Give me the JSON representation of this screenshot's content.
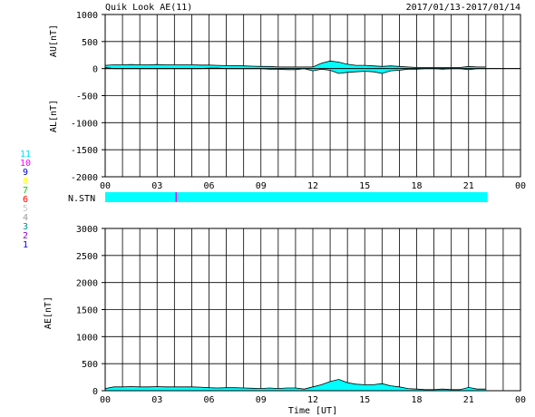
{
  "header": {
    "title": "Quik Look AE(11)",
    "date_range": "2017/01/13-2017/01/14"
  },
  "station_legend": [
    {
      "num": "11",
      "color": "#00e0ff"
    },
    {
      "num": "10",
      "color": "#ff00ff"
    },
    {
      "num": "9",
      "color": "#0000cc"
    },
    {
      "num": "8",
      "color": "#ffff00"
    },
    {
      "num": "7",
      "color": "#00cc00"
    },
    {
      "num": "6",
      "color": "#ff0000"
    },
    {
      "num": "5",
      "color": "#c8c8c8"
    },
    {
      "num": "4",
      "color": "#999999"
    },
    {
      "num": "3",
      "color": "#009090"
    },
    {
      "num": "2",
      "color": "#9900cc"
    },
    {
      "num": "1",
      "color": "#0000ff"
    }
  ],
  "nstn": {
    "label": "N.STN",
    "bar_color": "#00ffff",
    "start_hour": 0,
    "end_hour": 22.1,
    "marker_hour": 4.1,
    "marker_color": "#ff00ff"
  },
  "colors": {
    "fill": "#00ffff",
    "line": "#000000",
    "grid": "#000000"
  },
  "chart_data": [
    {
      "type": "area",
      "name": "AU/AL",
      "ylabel_upper": "AU[nT]",
      "ylabel_lower": "AL[nT]",
      "ylim": [
        -2000,
        1000
      ],
      "yticks": [
        1000,
        500,
        0,
        -500,
        -1000,
        -1500,
        -2000
      ],
      "xlim": [
        0,
        24
      ],
      "xticks": [
        "00",
        "03",
        "06",
        "09",
        "12",
        "15",
        "18",
        "21",
        "00"
      ],
      "grid": true,
      "x": [
        0,
        0.5,
        1,
        1.5,
        2,
        2.5,
        3,
        3.5,
        4,
        4.5,
        5,
        5.5,
        6,
        6.5,
        7,
        7.5,
        8,
        8.5,
        9,
        9.5,
        10,
        10.5,
        11,
        11.5,
        12,
        12.5,
        13,
        13.5,
        14,
        14.5,
        15,
        15.5,
        16,
        16.5,
        17,
        17.5,
        18,
        18.5,
        19,
        19.5,
        20,
        20.5,
        21,
        21.5,
        22
      ],
      "series": [
        {
          "name": "AU",
          "values": [
            60,
            70,
            70,
            75,
            70,
            70,
            75,
            70,
            70,
            70,
            70,
            65,
            65,
            60,
            55,
            55,
            50,
            45,
            40,
            40,
            30,
            30,
            30,
            30,
            30,
            100,
            140,
            120,
            80,
            60,
            60,
            50,
            40,
            50,
            40,
            30,
            20,
            20,
            20,
            20,
            20,
            20,
            40,
            30,
            30
          ]
        },
        {
          "name": "AL",
          "values": [
            20,
            0,
            0,
            0,
            0,
            0,
            0,
            0,
            0,
            0,
            0,
            0,
            10,
            10,
            0,
            0,
            0,
            0,
            0,
            -10,
            -10,
            -20,
            -20,
            0,
            -40,
            -10,
            -30,
            -90,
            -70,
            -60,
            -50,
            -60,
            -90,
            -40,
            -30,
            -10,
            -10,
            0,
            0,
            -10,
            0,
            0,
            -20,
            0,
            0
          ]
        }
      ]
    },
    {
      "type": "area",
      "name": "AE",
      "ylabel": "AE[nT]",
      "ylim": [
        0,
        3000
      ],
      "yticks": [
        3000,
        2500,
        2000,
        1500,
        1000,
        500,
        0
      ],
      "xlabel": "Time [UT]",
      "xlim": [
        0,
        24
      ],
      "xticks": [
        "00",
        "03",
        "06",
        "09",
        "12",
        "15",
        "18",
        "21",
        "00"
      ],
      "grid": true,
      "x": [
        0,
        0.5,
        1,
        1.5,
        2,
        2.5,
        3,
        3.5,
        4,
        4.5,
        5,
        5.5,
        6,
        6.5,
        7,
        7.5,
        8,
        8.5,
        9,
        9.5,
        10,
        10.5,
        11,
        11.5,
        12,
        12.5,
        13,
        13.5,
        14,
        14.5,
        15,
        15.5,
        16,
        16.5,
        17,
        17.5,
        18,
        18.5,
        19,
        19.5,
        20,
        20.5,
        21,
        21.5,
        22
      ],
      "values": [
        40,
        70,
        70,
        75,
        70,
        70,
        75,
        70,
        70,
        70,
        70,
        65,
        55,
        50,
        55,
        55,
        50,
        45,
        40,
        50,
        40,
        50,
        50,
        30,
        70,
        110,
        170,
        210,
        150,
        120,
        110,
        110,
        130,
        90,
        70,
        40,
        30,
        20,
        20,
        30,
        20,
        20,
        60,
        30,
        30
      ]
    }
  ]
}
